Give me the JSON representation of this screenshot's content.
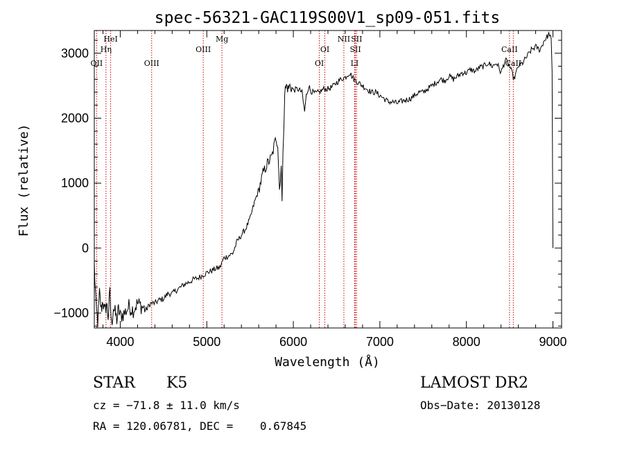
{
  "chart_data": {
    "type": "line",
    "title": "spec-56321-GAC119S00V1_sp09-051.fits",
    "xlabel": "Wavelength (Å)",
    "ylabel": "Flux (relative)",
    "xlim": [
      3700,
      9100
    ],
    "ylim": [
      -1230,
      3350
    ],
    "xticks": [
      4000,
      5000,
      6000,
      7000,
      8000,
      9000
    ],
    "yticks": [
      -1000,
      0,
      1000,
      2000,
      3000
    ],
    "grid": false,
    "line_color": "#000000",
    "marker_color": "#cc0000",
    "spectrum": {
      "x": [
        3700,
        3720,
        3740,
        3760,
        3780,
        3800,
        3820,
        3840,
        3860,
        3880,
        3900,
        3920,
        3940,
        3960,
        3980,
        4000,
        4050,
        4100,
        4150,
        4200,
        4250,
        4300,
        4350,
        4400,
        4450,
        4500,
        4550,
        4600,
        4650,
        4700,
        4750,
        4800,
        4850,
        4900,
        4950,
        5000,
        5050,
        5100,
        5150,
        5200,
        5250,
        5300,
        5350,
        5400,
        5450,
        5500,
        5550,
        5600,
        5650,
        5700,
        5750,
        5800,
        5820,
        5840,
        5850,
        5860,
        5870,
        5880,
        5900,
        5920,
        5940,
        5960,
        6000,
        6050,
        6100,
        6130,
        6150,
        6180,
        6200,
        6250,
        6300,
        6350,
        6400,
        6450,
        6500,
        6550,
        6600,
        6650,
        6700,
        6750,
        6800,
        6850,
        6900,
        6950,
        7000,
        7050,
        7100,
        7150,
        7200,
        7250,
        7300,
        7350,
        7400,
        7450,
        7500,
        7550,
        7600,
        7650,
        7700,
        7750,
        7800,
        7850,
        7900,
        7950,
        8000,
        8050,
        8100,
        8150,
        8200,
        8250,
        8300,
        8350,
        8400,
        8450,
        8500,
        8550,
        8600,
        8650,
        8700,
        8750,
        8800,
        8850,
        8900,
        8930,
        8960,
        8980,
        8990,
        9000
      ],
      "y": [
        -250,
        -900,
        -1150,
        -700,
        -950,
        -800,
        -1000,
        -850,
        -1050,
        -700,
        -1200,
        -900,
        -1000,
        -1100,
        -950,
        -1050,
        -1000,
        -900,
        -950,
        -850,
        -900,
        -950,
        -850,
        -850,
        -800,
        -780,
        -700,
        -700,
        -650,
        -600,
        -550,
        -520,
        -480,
        -460,
        -420,
        -380,
        -350,
        -320,
        -300,
        -150,
        -120,
        -80,
        100,
        200,
        300,
        450,
        700,
        900,
        1150,
        1300,
        1400,
        1700,
        1600,
        900,
        1100,
        1300,
        700,
        1400,
        2400,
        2500,
        2450,
        2500,
        2430,
        2450,
        2400,
        2100,
        2350,
        2500,
        2420,
        2380,
        2400,
        2450,
        2450,
        2480,
        2550,
        2600,
        2630,
        2700,
        2600,
        2550,
        2500,
        2450,
        2400,
        2400,
        2350,
        2300,
        2250,
        2250,
        2230,
        2260,
        2280,
        2300,
        2350,
        2400,
        2400,
        2450,
        2500,
        2550,
        2600,
        2580,
        2650,
        2600,
        2650,
        2700,
        2700,
        2750,
        2720,
        2780,
        2800,
        2850,
        2800,
        2850,
        2700,
        2900,
        2800,
        2600,
        2800,
        2850,
        2950,
        3050,
        3100,
        3050,
        3200,
        3250,
        3300,
        3200,
        2700,
        0
      ]
    },
    "lines": [
      {
        "name": "OII",
        "x": 3727
      },
      {
        "name": "Hη",
        "x": 3835
      },
      {
        "name": "HeI",
        "x": 3889
      },
      {
        "name": "OIII",
        "x": 4363
      },
      {
        "name": "OIII",
        "x": 4959
      },
      {
        "name": "Mg",
        "x": 5175
      },
      {
        "name": "OI",
        "x": 6300
      },
      {
        "name": "OI",
        "x": 6364
      },
      {
        "name": "NII",
        "x": 6584
      },
      {
        "name": "LI",
        "x": 6708
      },
      {
        "name": "SII",
        "x": 6717
      },
      {
        "name": "SII",
        "x": 6731
      },
      {
        "name": "CaII",
        "x": 8498
      },
      {
        "name": "CaII",
        "x": 8542
      }
    ]
  },
  "info": {
    "class": "STAR",
    "subclass": "K5",
    "survey": "LAMOST DR2",
    "cz": "cz = −71.8 ± 11.0 km/s",
    "obsdate": "Obs−Date: 20130128",
    "radec": "RA = 120.06781, DEC =    0.67845"
  }
}
